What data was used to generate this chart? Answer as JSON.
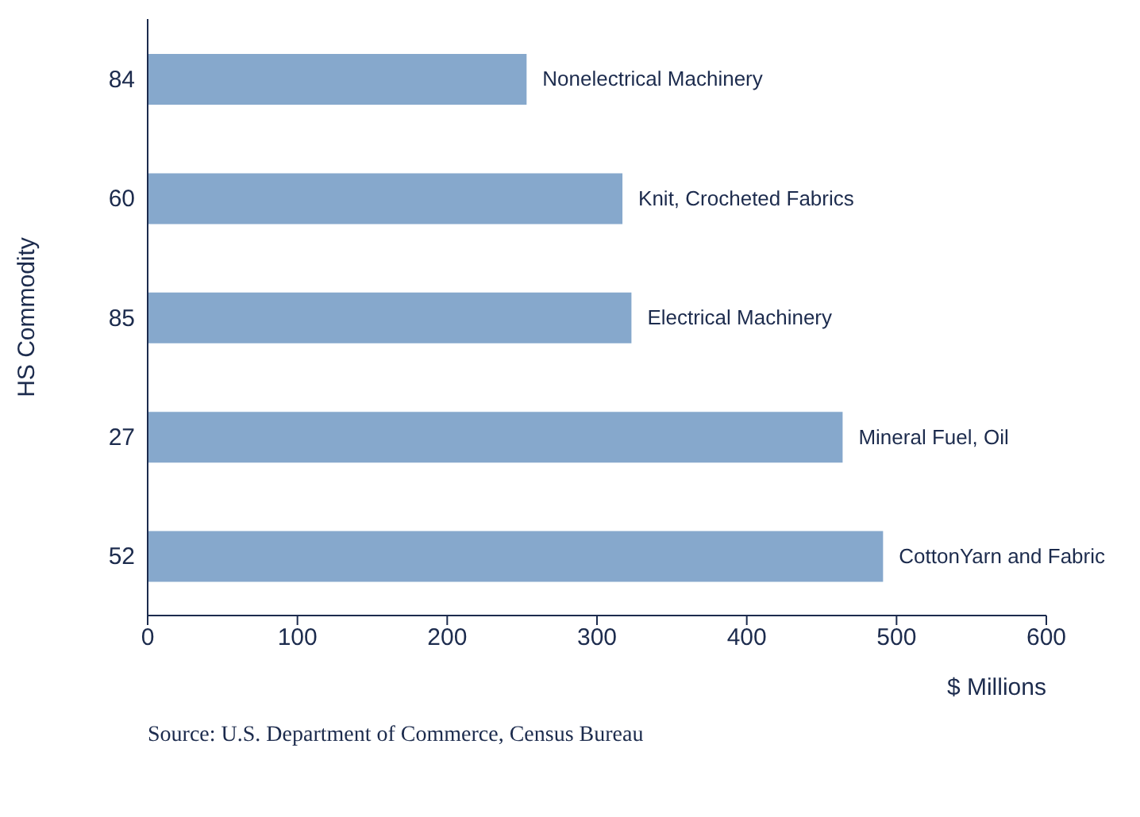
{
  "chart_data": {
    "type": "bar",
    "orientation": "horizontal",
    "categories": [
      "84",
      "60",
      "85",
      "27",
      "52"
    ],
    "values": [
      253,
      317,
      323,
      464,
      491
    ],
    "color": "#86a8cc",
    "xlim": [
      0,
      600
    ],
    "xticks": [
      0,
      100,
      200,
      300,
      400,
      500,
      600
    ],
    "xlabel": "$ Millions",
    "ylabel": "HS Commodity",
    "grid": false,
    "legend": false,
    "annotations": [
      {
        "text": "Nonelectrical Machinery",
        "x": 253,
        "y": "84"
      },
      {
        "text": "Knit, Crocheted Fabrics",
        "x": 317,
        "y": "60"
      },
      {
        "text": "Electrical Machinery",
        "x": 323,
        "y": "85"
      },
      {
        "text": "Mineral Fuel, Oil",
        "x": 464,
        "y": "27"
      },
      {
        "text": "CottonYarn and Fabric",
        "x": 491,
        "y": "52"
      },
      "Source: U.S. Department of Commerce, Census Bureau"
    ]
  }
}
